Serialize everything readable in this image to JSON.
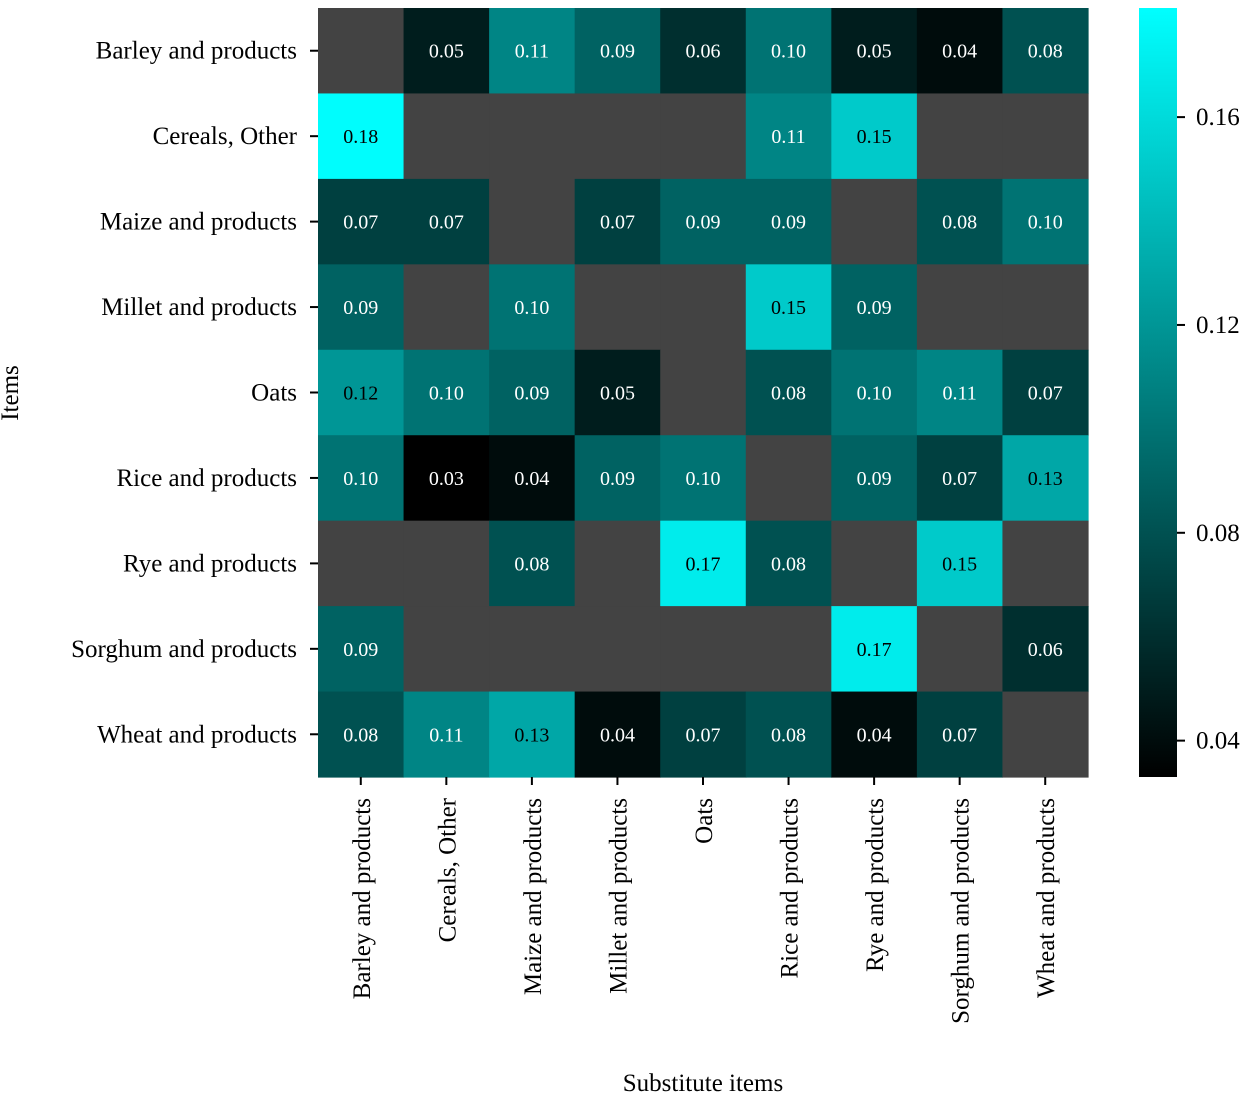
{
  "chart_data": {
    "type": "heatmap",
    "title": "",
    "xlabel": "Substitute items",
    "ylabel": "Items",
    "rows": [
      "Barley and products",
      "Cereals, Other",
      "Maize and products",
      "Millet and products",
      "Oats",
      "Rice and products",
      "Rye and products",
      "Sorghum and products",
      "Wheat and products"
    ],
    "columns": [
      "Barley and products",
      "Cereals, Other",
      "Maize and products",
      "Millet and products",
      "Oats",
      "Rice and products",
      "Rye and products",
      "Sorghum and products",
      "Wheat and products"
    ],
    "values": [
      [
        null,
        0.05,
        0.11,
        0.09,
        0.06,
        0.1,
        0.05,
        0.04,
        0.08
      ],
      [
        0.18,
        null,
        null,
        null,
        null,
        0.11,
        0.15,
        null,
        null
      ],
      [
        0.07,
        0.07,
        null,
        0.07,
        0.09,
        0.09,
        null,
        0.08,
        0.1
      ],
      [
        0.09,
        null,
        0.1,
        null,
        null,
        0.15,
        0.09,
        null,
        null
      ],
      [
        0.12,
        0.1,
        0.09,
        0.05,
        null,
        0.08,
        0.1,
        0.11,
        0.07
      ],
      [
        0.1,
        0.03,
        0.04,
        0.09,
        0.1,
        null,
        0.09,
        0.07,
        0.13
      ],
      [
        null,
        null,
        0.08,
        null,
        0.17,
        0.08,
        null,
        0.15,
        null
      ],
      [
        0.09,
        null,
        null,
        null,
        null,
        null,
        0.17,
        null,
        0.06
      ],
      [
        0.08,
        0.11,
        0.13,
        0.04,
        0.07,
        0.08,
        0.04,
        0.07,
        null
      ]
    ],
    "missing_color": "#434343",
    "colormap": {
      "low": "#000000",
      "high": "#00ffff"
    },
    "colorbar": {
      "range": [
        0.033,
        0.181
      ],
      "ticks": [
        0.04,
        0.08,
        0.12,
        0.16
      ],
      "tick_labels": [
        "0.04",
        "0.08",
        "0.12",
        "0.16"
      ]
    },
    "legend": "colorbar-right"
  }
}
